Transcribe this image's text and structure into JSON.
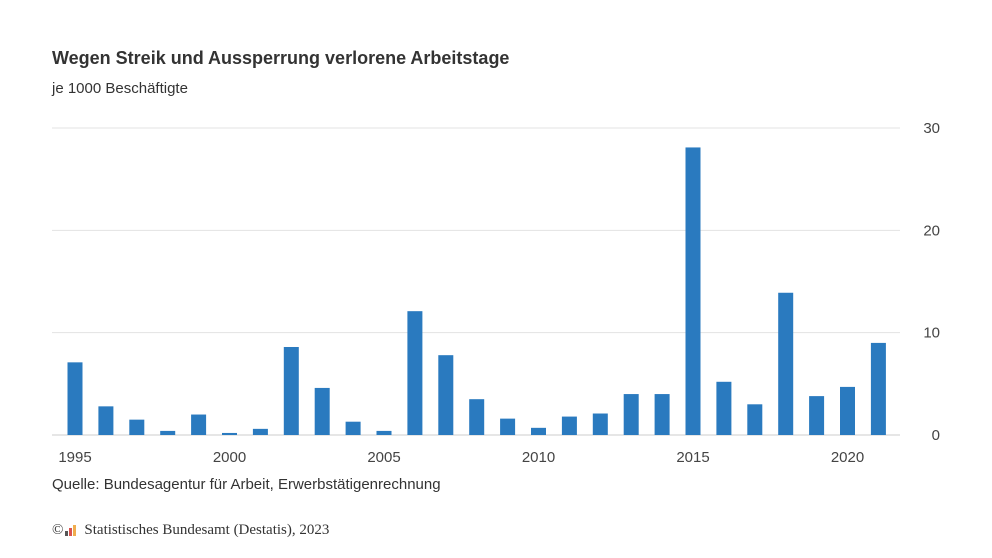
{
  "chart_data": {
    "type": "bar",
    "title": "Wegen Streik und Aussperrung verlorene Arbeitstage",
    "subtitle": "je 1000 Beschäftigte",
    "x": [
      1995,
      1996,
      1997,
      1998,
      1999,
      2000,
      2001,
      2002,
      2003,
      2004,
      2005,
      2006,
      2007,
      2008,
      2009,
      2010,
      2011,
      2012,
      2013,
      2014,
      2015,
      2016,
      2017,
      2018,
      2019,
      2020,
      2021
    ],
    "values": [
      7.1,
      2.8,
      1.5,
      0.4,
      2.0,
      0.2,
      0.6,
      8.6,
      4.6,
      1.3,
      0.4,
      12.1,
      7.8,
      3.5,
      1.6,
      0.7,
      1.8,
      2.1,
      4.0,
      4.0,
      28.1,
      5.2,
      3.0,
      13.9,
      3.8,
      4.7,
      9.0
    ],
    "x_tick_labels": [
      "1995",
      "2000",
      "2005",
      "2010",
      "2015",
      "2020"
    ],
    "y_tick_labels": [
      "0",
      "10",
      "20",
      "30"
    ],
    "ylim": [
      0,
      30
    ],
    "grid": true,
    "y_axis_side": "right",
    "bar_color": "#2a7abf",
    "grid_color": "#e3e3e3"
  },
  "footer": {
    "source": "Quelle: Bundesagentur für Arbeit, Erwerbstätigenrechnung",
    "copyright_symbol": "©",
    "copyright": "Statistisches Bundesamt (Destatis), 2023"
  }
}
